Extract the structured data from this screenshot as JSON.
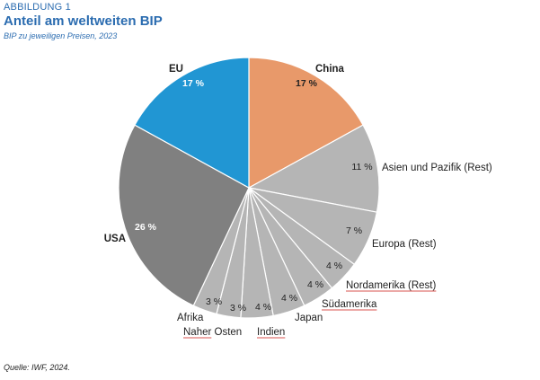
{
  "figure": {
    "label": "ABBILDUNG 1",
    "title": "Anteil am weltweiten BIP",
    "subtitle": "BIP zu jeweiligen Preisen, 2023",
    "source": "Quelle: IWF, 2024."
  },
  "chart_data": {
    "type": "pie",
    "start_angle_deg": 0,
    "direction": "clockwise",
    "slices": [
      {
        "label": "China",
        "value": 17,
        "value_label": "17 %",
        "color": "#E8996A",
        "label_bold": true,
        "value_bold": true,
        "value_color": "#222222",
        "underline": false
      },
      {
        "label": "Asien und Pazifik (Rest)",
        "value": 11,
        "value_label": "11 %",
        "color": "#B5B5B5",
        "label_bold": false,
        "value_bold": false,
        "value_color": "#222222",
        "underline": false
      },
      {
        "label": "Europa (Rest)",
        "value": 7,
        "value_label": "7 %",
        "color": "#B5B5B5",
        "label_bold": false,
        "value_bold": false,
        "value_color": "#222222",
        "underline": false
      },
      {
        "label": "Nordamerika (Rest)",
        "value": 4,
        "value_label": "4 %",
        "color": "#B5B5B5",
        "label_bold": false,
        "value_bold": false,
        "value_color": "#222222",
        "underline": true
      },
      {
        "label": "Südamerika",
        "value": 4,
        "value_label": "4 %",
        "color": "#B5B5B5",
        "label_bold": false,
        "value_bold": false,
        "value_color": "#222222",
        "underline": true
      },
      {
        "label": "Japan",
        "value": 4,
        "value_label": "4 %",
        "color": "#B5B5B5",
        "label_bold": false,
        "value_bold": false,
        "value_color": "#222222",
        "underline": false
      },
      {
        "label": "Indien",
        "value": 4,
        "value_label": "4 %",
        "color": "#B5B5B5",
        "label_bold": false,
        "value_bold": false,
        "value_color": "#222222",
        "underline": true
      },
      {
        "label": "Naher Osten",
        "value": 3,
        "value_label": "3 %",
        "color": "#B5B5B5",
        "label_bold": false,
        "value_bold": false,
        "value_color": "#222222",
        "underline": false,
        "underline_part": "Naher"
      },
      {
        "label": "Afrika",
        "value": 3,
        "value_label": "3 %",
        "color": "#B5B5B5",
        "label_bold": false,
        "value_bold": false,
        "value_color": "#222222",
        "underline": false
      },
      {
        "label": "USA",
        "value": 26,
        "value_label": "26 %",
        "color": "#808080",
        "label_bold": true,
        "value_bold": true,
        "value_color": "#ffffff",
        "underline": false
      },
      {
        "label": "EU",
        "value": 17,
        "value_label": "17 %",
        "color": "#2196D3",
        "label_bold": true,
        "value_bold": true,
        "value_color": "#ffffff",
        "underline": false
      }
    ],
    "underline_color": "#d9534f"
  }
}
